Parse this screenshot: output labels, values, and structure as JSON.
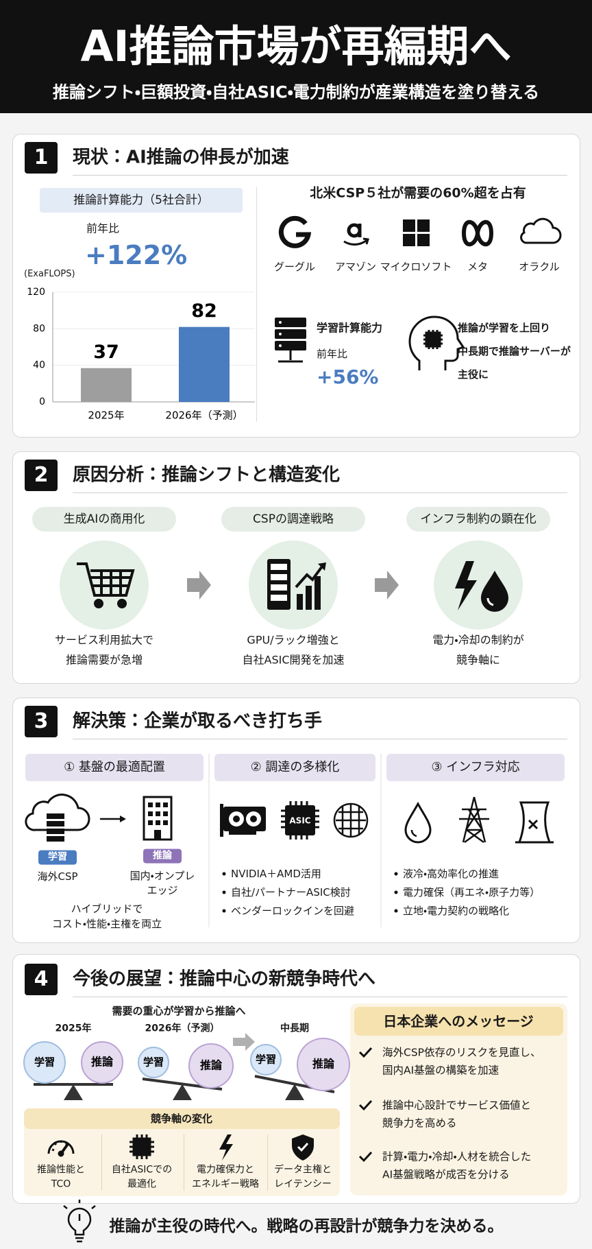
{
  "header": {
    "title": "AI推論市場が再編期へ",
    "subtitle": "推論シフト・巨額投資・自社ASIC・電力制約が産業構造を塗り替える"
  },
  "section1": {
    "number": "1",
    "title": "現状：AI推論の伸長が加速",
    "chart": {
      "type": "bar",
      "title": "推論計算能力（5社合計）",
      "growth_label": "前年比",
      "growth": "+122%",
      "unit": "(ExaFLOPS)",
      "categories": [
        "2025年",
        "2026年（予測）"
      ],
      "values": [
        37,
        82
      ],
      "colors": [
        "#9e9e9e",
        "#4a7cc0"
      ],
      "ylim": [
        0,
        120
      ],
      "yticks": [
        0,
        40,
        80,
        120
      ]
    },
    "csp": {
      "title": "北米CSP５社が需要の60%超を占有",
      "companies": [
        "グーグル",
        "アマゾン",
        "マイクロソフト",
        "メタ",
        "オラクル"
      ]
    },
    "training": {
      "title": "学習計算能力",
      "growth_label": "前年比",
      "growth": "+56%"
    },
    "note": {
      "lines": [
        "推論が学習を上回り",
        "中長期で推論サーバーが",
        "主役に"
      ]
    }
  },
  "section2": {
    "number": "2",
    "title": "原因分析：推論シフトと構造変化",
    "items": [
      {
        "label": "生成AIの商用化",
        "lines": [
          "サービス利用拡大で",
          "推論需要が急増"
        ]
      },
      {
        "label": "CSPの調達戦略",
        "lines": [
          "GPU/ラック増強と",
          "自社ASIC開発を加速"
        ]
      },
      {
        "label": "インフラ制約の顕在化",
        "lines": [
          "電力・冷却の制約が",
          "競争軸に"
        ]
      }
    ]
  },
  "section3": {
    "number": "3",
    "title": "解決策：企業が取るべき打ち手",
    "columns": [
      {
        "heading": "① 基盤の最適配置",
        "tags": [
          "学習",
          "推論"
        ],
        "left_caption": "海外CSP",
        "right_caption": [
          "国内・オンプレ",
          "エッジ"
        ],
        "note": [
          "ハイブリッドで",
          "コスト・性能・主権を両立"
        ]
      },
      {
        "heading": "② 調達の多様化",
        "chip_label": "ASIC",
        "bullets": [
          "NVIDIA＋AMD活用",
          "自社/パートナーASIC検討",
          "ベンダーロックインを回避"
        ]
      },
      {
        "heading": "③ インフラ対応",
        "bullets": [
          "液冷・高効率化の推進",
          "電力確保（再エネ・原子力等）",
          "立地・電力契約の戦略化"
        ]
      }
    ]
  },
  "section4": {
    "number": "4",
    "title": "今後の展望：推論中心の新競争時代へ",
    "shift": {
      "title": "需要の重心が学習から推論へ",
      "stages": [
        {
          "period": "2025年",
          "left": "学習",
          "right": "推論"
        },
        {
          "period": "2026年（予測）",
          "left": "学習",
          "right": "推論"
        },
        {
          "period": "中長期",
          "left": "学習",
          "right": "推論"
        }
      ]
    },
    "axes": {
      "title": "競争軸の変化",
      "items": [
        {
          "lines": [
            "推論性能と",
            "TCO"
          ]
        },
        {
          "lines": [
            "自社ASICでの",
            "最適化"
          ]
        },
        {
          "lines": [
            "電力確保力と",
            "エネルギー戦略"
          ]
        },
        {
          "lines": [
            "データ主権と",
            "レイテンシー"
          ]
        }
      ]
    },
    "message": {
      "title": "日本企業へのメッセージ",
      "items": [
        {
          "lines": [
            "海外CSP依存のリスクを見直し、",
            "国内AI基盤の構築を加速"
          ]
        },
        {
          "lines": [
            "推論中心設計でサービス価値と",
            "競争力を高める"
          ]
        },
        {
          "lines": [
            "計算・電力・冷却・人材を統合した",
            "AI基盤戦略が成否を分ける"
          ]
        }
      ]
    }
  },
  "footer": "推論が主役の時代へ。戦略の再設計が競争力を決める。"
}
